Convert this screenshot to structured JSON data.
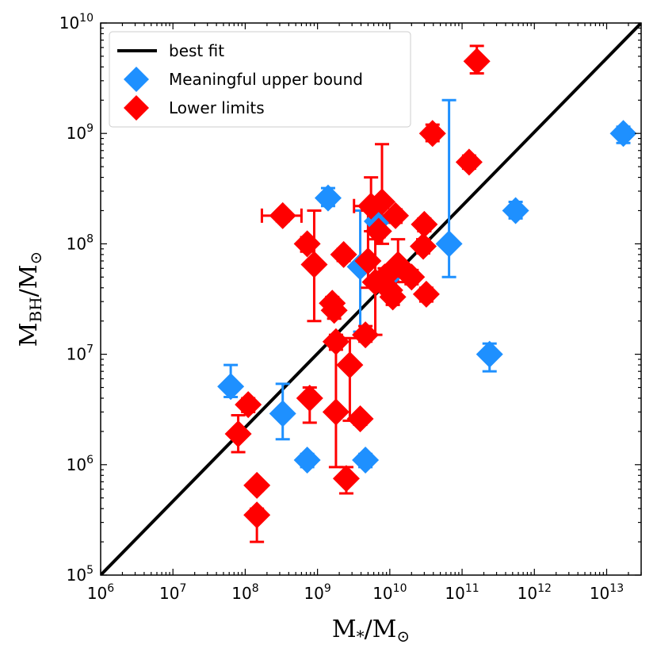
{
  "chart_data": {
    "type": "scatter",
    "title": "",
    "x_scale": "log",
    "y_scale": "log",
    "xlim": [
      1000000.0,
      30000000000000.0
    ],
    "ylim": [
      100000.0,
      10000000000.0
    ],
    "x_ticks": [
      {
        "value": 1000000.0,
        "base": "10",
        "exp": "6"
      },
      {
        "value": 10000000.0,
        "base": "10",
        "exp": "7"
      },
      {
        "value": 100000000.0,
        "base": "10",
        "exp": "8"
      },
      {
        "value": 1000000000.0,
        "base": "10",
        "exp": "9"
      },
      {
        "value": 10000000000.0,
        "base": "10",
        "exp": "10"
      },
      {
        "value": 100000000000.0,
        "base": "10",
        "exp": "11"
      },
      {
        "value": 1000000000000.0,
        "base": "10",
        "exp": "12"
      },
      {
        "value": 10000000000000.0,
        "base": "10",
        "exp": "13"
      }
    ],
    "y_ticks": [
      {
        "value": 100000.0,
        "base": "10",
        "exp": "5"
      },
      {
        "value": 1000000.0,
        "base": "10",
        "exp": "6"
      },
      {
        "value": 10000000.0,
        "base": "10",
        "exp": "7"
      },
      {
        "value": 100000000.0,
        "base": "10",
        "exp": "8"
      },
      {
        "value": 1000000000.0,
        "base": "10",
        "exp": "9"
      },
      {
        "value": 10000000000.0,
        "base": "10",
        "exp": "10"
      }
    ],
    "xlabel": {
      "main": "M",
      "sub": "*",
      "sep": "/M",
      "sub2": "⊙"
    },
    "ylabel": {
      "main": "M",
      "sub": "BH",
      "sep": "/M",
      "sub2": "⊙"
    },
    "legend": {
      "placement": "top-left",
      "entries": [
        {
          "label": "best fit",
          "marker": "line",
          "color": "#000000"
        },
        {
          "label": "Meaningful upper bound",
          "marker": "diamond",
          "color": "#1E90FF"
        },
        {
          "label": "Lower limits",
          "marker": "diamond",
          "color": "#FF0000"
        }
      ]
    },
    "fit_line": {
      "name": "best fit",
      "color": "#000000",
      "points": [
        [
          1000000.0,
          100000.0
        ],
        [
          30000000000000.0,
          10000000000.0
        ]
      ]
    },
    "series": [
      {
        "name": "Meaningful upper bound",
        "color": "#1E90FF",
        "points": [
          {
            "x": 63000000.0,
            "y": 5100000.0,
            "ylo": 4100000.0,
            "yhi": 8000000.0
          },
          {
            "x": 330000000.0,
            "y": 2900000.0,
            "ylo": 1700000.0,
            "yhi": 5400000.0
          },
          {
            "x": 720000000.0,
            "y": 1100000.0,
            "ylo": 950000.0,
            "yhi": 1250000.0
          },
          {
            "x": 1400000000.0,
            "y": 260000000.0,
            "ylo": 220000000.0,
            "yhi": 320000000.0
          },
          {
            "x": 3900000000.0,
            "y": 62000000.0,
            "ylo": 16000000.0,
            "yhi": 200000000.0
          },
          {
            "x": 4600000000.0,
            "y": 1100000.0,
            "ylo": 950000.0,
            "yhi": 1250000.0
          },
          {
            "x": 6700000000.0,
            "y": 160000000.0,
            "ylo": 130000000.0,
            "yhi": 200000000.0
          },
          {
            "x": 11000000000.0,
            "y": 55000000.0,
            "ylo": 45000000.0,
            "yhi": 65000000.0
          },
          {
            "x": 66000000000.0,
            "y": 100000000.0,
            "ylo": 50000000.0,
            "yhi": 2000000000.0
          },
          {
            "x": 240000000000.0,
            "y": 10000000.0,
            "ylo": 7000000.0,
            "yhi": 12500000.0
          },
          {
            "x": 550000000000.0,
            "y": 200000000.0,
            "ylo": 170000000.0,
            "yhi": 240000000.0
          },
          {
            "x": 17000000000000.0,
            "y": 1000000000.0,
            "ylo": 820000000.0,
            "yhi": 1150000000.0
          }
        ]
      },
      {
        "name": "Lower limits",
        "color": "#FF0000",
        "points": [
          {
            "x": 80000000.0,
            "y": 1900000.0,
            "ylo": 1300000.0,
            "yhi": 2800000.0
          },
          {
            "x": 110000000.0,
            "y": 3500000.0,
            "ylo": 3000000.0,
            "yhi": 4000000.0
          },
          {
            "x": 145000000.0,
            "y": 650000.0,
            "ylo": 580000.0,
            "yhi": 720000.0
          },
          {
            "x": 145000000.0,
            "y": 350000.0,
            "ylo": 200000.0,
            "yhi": 400000.0
          },
          {
            "x": 330000000.0,
            "y": 180000000.0,
            "ylo": 160000000.0,
            "yhi": 200000000.0,
            "xlo": 170000000.0,
            "xhi": 600000000.0
          },
          {
            "x": 720000000.0,
            "y": 100000000.0,
            "ylo": 85000000.0,
            "yhi": 115000000.0
          },
          {
            "x": 780000000.0,
            "y": 4000000.0,
            "ylo": 2400000.0,
            "yhi": 5000000.0
          },
          {
            "x": 900000000.0,
            "y": 65000000.0,
            "ylo": 20000000.0,
            "yhi": 200000000.0
          },
          {
            "x": 1600000000.0,
            "y": 29000000.0,
            "ylo": 25000000.0,
            "yhi": 33000000.0
          },
          {
            "x": 1700000000.0,
            "y": 25000000.0,
            "ylo": 21000000.0,
            "yhi": 29000000.0
          },
          {
            "x": 1800000000.0,
            "y": 13000000.0,
            "ylo": 11000000.0,
            "yhi": 15000000.0
          },
          {
            "x": 1800000000.0,
            "y": 3000000.0,
            "ylo": 950000.0,
            "yhi": 13000000.0
          },
          {
            "x": 2300000000.0,
            "y": 80000000.0,
            "ylo": 70000000.0,
            "yhi": 90000000.0
          },
          {
            "x": 2500000000.0,
            "y": 750000.0,
            "ylo": 550000.0,
            "yhi": 950000.0
          },
          {
            "x": 2800000000.0,
            "y": 8000000.0,
            "ylo": 2500000.0,
            "yhi": 14000000.0
          },
          {
            "x": 3900000000.0,
            "y": 2600000.0,
            "ylo": 2300000.0,
            "yhi": 2900000.0
          },
          {
            "x": 4600000000.0,
            "y": 15000000.0,
            "ylo": 13000000.0,
            "yhi": 18000000.0
          },
          {
            "x": 5000000000.0,
            "y": 70000000.0,
            "ylo": 40000000.0,
            "yhi": 200000000.0
          },
          {
            "x": 5500000000.0,
            "y": 220000000.0,
            "ylo": 130000000.0,
            "yhi": 400000000.0,
            "xlo": 3200000000.0,
            "xhi": 6500000000.0
          },
          {
            "x": 6300000000.0,
            "y": 45000000.0,
            "ylo": 15000000.0,
            "yhi": 110000000.0
          },
          {
            "x": 7000000000.0,
            "y": 130000000.0,
            "ylo": 115000000.0,
            "yhi": 150000000.0
          },
          {
            "x": 7800000000.0,
            "y": 240000000.0,
            "ylo": 100000000.0,
            "yhi": 800000000.0
          },
          {
            "x": 8500000000.0,
            "y": 50000000.0,
            "ylo": 42000000.0,
            "yhi": 60000000.0
          },
          {
            "x": 10000000000.0,
            "y": 38000000.0,
            "ylo": 32000000.0,
            "yhi": 44000000.0
          },
          {
            "x": 11000000000.0,
            "y": 33000000.0,
            "ylo": 28000000.0,
            "yhi": 38000000.0
          },
          {
            "x": 12000000000.0,
            "y": 180000000.0,
            "ylo": 155000000.0,
            "yhi": 205000000.0
          },
          {
            "x": 13000000000.0,
            "y": 65000000.0,
            "ylo": 45000000.0,
            "yhi": 110000000.0
          },
          {
            "x": 20000000000.0,
            "y": 50000000.0,
            "ylo": 43000000.0,
            "yhi": 58000000.0
          },
          {
            "x": 29000000000.0,
            "y": 95000000.0,
            "ylo": 82000000.0,
            "yhi": 110000000.0
          },
          {
            "x": 30000000000.0,
            "y": 150000000.0,
            "ylo": 130000000.0,
            "yhi": 170000000.0
          },
          {
            "x": 32000000000.0,
            "y": 35000000.0,
            "ylo": 30000000.0,
            "yhi": 40000000.0
          },
          {
            "x": 39000000000.0,
            "y": 1000000000.0,
            "ylo": 850000000.0,
            "yhi": 1200000000.0
          },
          {
            "x": 125000000000.0,
            "y": 550000000.0,
            "ylo": 480000000.0,
            "yhi": 630000000.0
          },
          {
            "x": 160000000000.0,
            "y": 4500000000.0,
            "ylo": 3500000000.0,
            "yhi": 6200000000.0
          }
        ]
      }
    ],
    "grid": false
  }
}
